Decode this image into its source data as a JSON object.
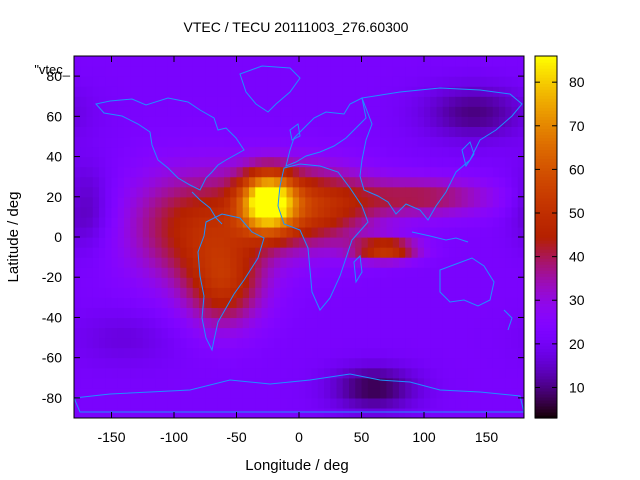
{
  "chart_data": {
    "type": "heatmap",
    "title": "VTEC / TECU 20111003_276.60300",
    "xlabel": "Longitude / deg",
    "ylabel": "Latitude / deg",
    "legend_key": "\"vtec_",
    "xlim": [
      -180,
      180
    ],
    "ylim": [
      -90,
      90
    ],
    "x_ticks": [
      -150,
      -100,
      -50,
      0,
      50,
      100,
      150
    ],
    "y_ticks": [
      -80,
      -60,
      -40,
      -20,
      0,
      20,
      40,
      60,
      80
    ],
    "colorbar": {
      "range": [
        3,
        86
      ],
      "ticks": [
        10,
        20,
        30,
        40,
        50,
        60,
        70,
        80
      ],
      "palette": "gnuplot-heat"
    },
    "grid": false,
    "background_level": 22,
    "features": [
      {
        "lon": -25,
        "lat": 18,
        "sigma_lon": 15,
        "sigma_lat": 10,
        "amp": 55
      },
      {
        "lon": 10,
        "lat": 15,
        "sigma_lon": 35,
        "sigma_lat": 14,
        "amp": 28
      },
      {
        "lon": -80,
        "lat": 5,
        "sigma_lon": 40,
        "sigma_lat": 20,
        "amp": 25
      },
      {
        "lon": -60,
        "lat": -25,
        "sigma_lon": 22,
        "sigma_lat": 15,
        "amp": 22
      },
      {
        "lon": 70,
        "lat": -6,
        "sigma_lon": 18,
        "sigma_lat": 4,
        "amp": 30
      },
      {
        "lon": 100,
        "lat": 20,
        "sigma_lon": 40,
        "sigma_lat": 7,
        "amp": 18
      },
      {
        "lon": 60,
        "lat": -75,
        "sigma_lon": 25,
        "sigma_lat": 8,
        "amp": -15
      },
      {
        "lon": 140,
        "lat": 62,
        "sigma_lon": 30,
        "sigma_lat": 10,
        "amp": -12
      },
      {
        "lon": -170,
        "lat": 15,
        "sigma_lon": 15,
        "sigma_lat": 15,
        "amp": -10
      },
      {
        "lon": -140,
        "lat": -50,
        "sigma_lon": 30,
        "sigma_lat": 10,
        "amp": -5
      }
    ]
  }
}
